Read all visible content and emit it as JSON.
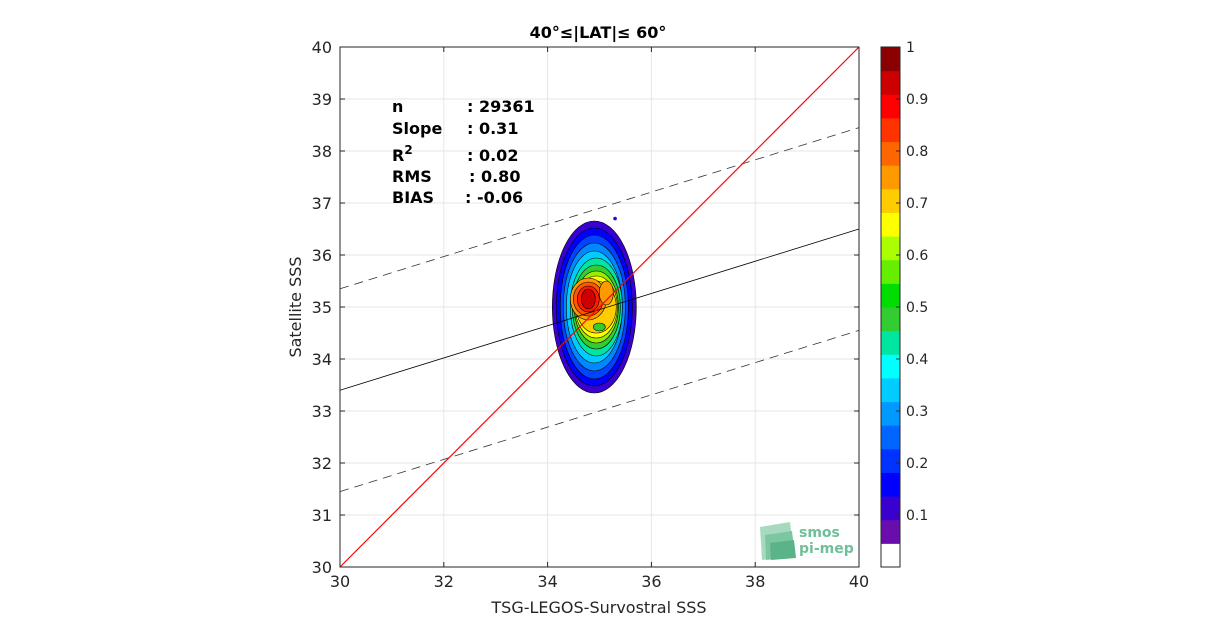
{
  "chart_data": {
    "type": "heatmap",
    "subtype": "density-contour",
    "title": "40°≤|LAT|≤ 60°",
    "xlabel": "TSG-LEGOS-Survostral SSS",
    "ylabel": "Satellite SSS",
    "xlim": [
      30,
      40
    ],
    "ylim": [
      30,
      40
    ],
    "xticks": [
      "30",
      "32",
      "34",
      "36",
      "38",
      "40"
    ],
    "yticks": [
      "30",
      "31",
      "32",
      "33",
      "34",
      "35",
      "36",
      "37",
      "38",
      "39",
      "40"
    ],
    "grid": true,
    "stats": [
      {
        "label": "n",
        "value": ": 29361"
      },
      {
        "label": "Slope",
        "value": ": 0.31"
      },
      {
        "label": "R",
        "sup": "2",
        "value": ": 0.02"
      },
      {
        "label": "RMS",
        "value": ": 0.80"
      },
      {
        "label": "BIAS",
        "value": ": -0.06"
      }
    ],
    "lines": {
      "identity": {
        "x": [
          30,
          40
        ],
        "y": [
          30,
          40
        ],
        "color": "#ff0000"
      },
      "fit": {
        "x": [
          30,
          40
        ],
        "y": [
          33.4,
          36.5
        ],
        "color": "#000000"
      },
      "fit_upper": {
        "x": [
          30,
          40
        ],
        "y": [
          35.35,
          38.45
        ],
        "style": "dashed"
      },
      "fit_lower": {
        "x": [
          30,
          40
        ],
        "y": [
          31.45,
          34.55
        ],
        "style": "dashed"
      }
    },
    "density_center": {
      "x": 34.9,
      "y": 35.0
    },
    "colorbar": {
      "range": [
        0,
        1
      ],
      "ticks": [
        "0.1",
        "0.2",
        "0.3",
        "0.4",
        "0.5",
        "0.6",
        "0.7",
        "0.8",
        "0.9",
        "1"
      ],
      "colors": [
        "#ffffff",
        "#6a0dad",
        "#3a00d0",
        "#0000ff",
        "#0033ff",
        "#0066ff",
        "#0099ff",
        "#00ccff",
        "#00ffff",
        "#00e6a0",
        "#33cc33",
        "#00dd00",
        "#66ee00",
        "#aaff00",
        "#ffff00",
        "#ffcc00",
        "#ff9900",
        "#ff6600",
        "#ff3300",
        "#ff0000",
        "#cc0000",
        "#8b0000"
      ]
    }
  },
  "logo": {
    "line1": "smos",
    "line2": "pi-mep"
  }
}
